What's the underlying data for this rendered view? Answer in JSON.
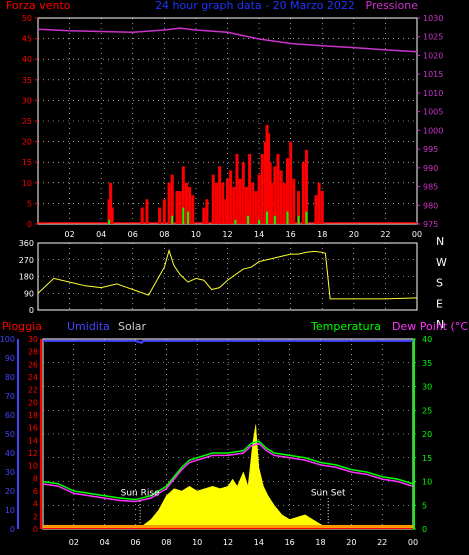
{
  "header": {
    "left_label": "Forza vento",
    "center_label": "24 hour graph data - 20 Marzo 2022",
    "right_label": "Pressione"
  },
  "colors": {
    "background": "#000000",
    "axis": "#ffffff",
    "grid": "#ffffff",
    "wind": "#ff0000",
    "gust": "#ff0000",
    "wind_avg": "#00ff00",
    "pressure": "#cc33cc",
    "direction": "#ffff33",
    "humidity": "#4444ff",
    "solar": "#ffff00",
    "temperature": "#00ff00",
    "dewpoint": "#ff33ff",
    "rain": "#ff0000",
    "header_title": "#2233ff",
    "solar_label": "#cccccc"
  },
  "chart_data": [
    {
      "type": "bar",
      "panel": "wind-pressure",
      "left_axis_label": "Forza vento",
      "right_axis_label": "Pressione",
      "x_tick_labels": [
        "02",
        "04",
        "06",
        "08",
        "10",
        "12",
        "14",
        "16",
        "18",
        "20",
        "22",
        "00"
      ],
      "left_ticks": [
        0,
        5,
        10,
        15,
        20,
        25,
        30,
        35,
        40,
        45,
        50
      ],
      "right_ticks": [
        975,
        980,
        985,
        990,
        995,
        1000,
        1005,
        1010,
        1015,
        1020,
        1025,
        1030
      ],
      "left_range": [
        0,
        50
      ],
      "right_range": [
        975,
        1030
      ],
      "x_range": [
        0,
        24
      ],
      "grid": true,
      "pressure": {
        "x": [
          0,
          2,
          4,
          6,
          8,
          9,
          10,
          12,
          13,
          14,
          15,
          16,
          18,
          20,
          22,
          24
        ],
        "y": [
          1027,
          1026.6,
          1026.4,
          1026.2,
          1026.8,
          1027.3,
          1026.8,
          1026.2,
          1025.3,
          1024.4,
          1023.8,
          1023.2,
          1022.6,
          1022.1,
          1021.5,
          1021
        ]
      },
      "gust": {
        "x": [
          4.5,
          4.6,
          4.7,
          6.6,
          6.9,
          7.7,
          8.0,
          8.3,
          8.5,
          8.8,
          9.0,
          9.2,
          9.4,
          9.6,
          9.8,
          10.5,
          10.7,
          11.1,
          11.3,
          11.5,
          11.7,
          11.9,
          12.0,
          12.2,
          12.4,
          12.6,
          12.8,
          13.0,
          13.2,
          13.4,
          13.6,
          13.8,
          14.0,
          14.2,
          14.4,
          14.5,
          14.6,
          14.7,
          14.8,
          15.0,
          15.2,
          15.4,
          15.6,
          15.8,
          16.0,
          16.2,
          16.5,
          16.8,
          17.0,
          17.6,
          17.8,
          18.0
        ],
        "y": [
          6,
          10,
          4,
          4,
          6,
          4,
          6,
          10,
          12,
          8,
          8,
          14,
          10,
          9,
          7,
          4,
          6,
          12,
          10,
          14,
          10,
          6,
          11,
          13,
          9,
          17,
          11,
          15,
          9,
          17,
          10,
          8,
          12,
          17,
          20,
          24,
          22,
          15,
          10,
          14,
          17,
          13,
          10,
          16,
          20,
          11,
          8,
          15,
          18,
          7,
          10,
          8
        ]
      },
      "wind_avg": {
        "x": [
          4.5,
          8.5,
          9.2,
          9.5,
          12.5,
          13.3,
          14.0,
          14.5,
          15.0,
          15.8,
          16.5,
          17.0
        ],
        "y": [
          1,
          2,
          4,
          3,
          1,
          2,
          1,
          3,
          2,
          3,
          2,
          3
        ]
      }
    },
    {
      "type": "scatter",
      "panel": "wind-direction",
      "right_axis_labels": [
        "N",
        "W",
        "S",
        "E",
        "N"
      ],
      "left_ticks": [
        0,
        90,
        180,
        270,
        360
      ],
      "left_range": [
        0,
        360
      ],
      "x_range": [
        0,
        24
      ],
      "grid": true,
      "direction": {
        "x": [
          0,
          1,
          2,
          3,
          4,
          5,
          6,
          7,
          8,
          8.3,
          8.6,
          9,
          9.5,
          10,
          10.5,
          11,
          11.5,
          12,
          12.5,
          13,
          13.5,
          14,
          14.5,
          15,
          15.5,
          16,
          16.5,
          17,
          17.5,
          18,
          18.2,
          18.5,
          20,
          22,
          24
        ],
        "y": [
          90,
          170,
          150,
          130,
          120,
          140,
          110,
          80,
          230,
          320,
          240,
          190,
          150,
          170,
          160,
          110,
          120,
          160,
          190,
          220,
          230,
          260,
          270,
          280,
          290,
          300,
          300,
          310,
          315,
          310,
          305,
          60,
          60,
          60,
          65
        ]
      }
    },
    {
      "type": "area",
      "panel": "temperature-solar-rain",
      "labels": {
        "rain": "Pioggia",
        "humidity": "Umidita",
        "solar": "Solar",
        "temperature": "Temperatura",
        "dewpoint": "Dew Point (°C)",
        "sun_rise": "Sun Rise",
        "sun_set": "Sun Set"
      },
      "x_tick_labels": [
        "02",
        "04",
        "06",
        "08",
        "10",
        "12",
        "14",
        "16",
        "18",
        "20",
        "22",
        "00"
      ],
      "humidity_ticks": [
        0,
        10,
        20,
        30,
        40,
        50,
        60,
        70,
        80,
        90,
        100
      ],
      "rain_ticks": [
        0,
        2,
        4,
        6,
        8,
        10,
        12,
        14,
        16,
        18,
        20,
        22,
        24,
        26,
        28,
        30
      ],
      "temperature_ticks": [
        0,
        5,
        10,
        15,
        20,
        25,
        30,
        35,
        40
      ],
      "temperature_range": [
        0,
        40
      ],
      "x_range": [
        0,
        24
      ],
      "grid": true,
      "sun_rise_x": 6.3,
      "sun_set_x": 18.5,
      "humidity": {
        "x": [
          0,
          6.0,
          6.4,
          6.5,
          8,
          24
        ],
        "y": [
          99,
          99,
          98,
          99,
          99,
          99
        ]
      },
      "temperature": {
        "x": [
          0,
          1,
          2,
          3,
          4,
          5,
          6,
          7,
          8,
          9,
          9.5,
          10,
          11,
          12,
          13,
          13.5,
          14,
          14.5,
          15,
          16,
          17,
          18,
          19,
          20,
          21,
          22,
          23,
          24
        ],
        "y": [
          10,
          9.5,
          8,
          7.5,
          7,
          6.5,
          6.2,
          7,
          9,
          13,
          14.5,
          15,
          16,
          16,
          16.5,
          18,
          18.5,
          17,
          16,
          15.5,
          15,
          14,
          13.5,
          12.5,
          12,
          11,
          10.5,
          9.5
        ]
      },
      "dewpoint": {
        "x": [
          0,
          1,
          2,
          3,
          4,
          5,
          6,
          7,
          8,
          9,
          9.5,
          10,
          11,
          12,
          13,
          13.5,
          14,
          14.5,
          15,
          16,
          17,
          18,
          19,
          20,
          21,
          22,
          23,
          24
        ],
        "y": [
          9.5,
          9,
          7.5,
          7,
          6.5,
          6,
          5.8,
          6.5,
          8.5,
          12.5,
          14,
          14.5,
          15.5,
          15.5,
          16,
          17.5,
          18,
          16.5,
          15.5,
          15,
          14.5,
          13.5,
          13,
          12,
          11.5,
          10.5,
          10,
          9
        ]
      },
      "solar": {
        "x": [
          6.3,
          7.0,
          7.5,
          8,
          8.5,
          9,
          9.5,
          10,
          10.5,
          11,
          11.5,
          12,
          12.3,
          12.6,
          13,
          13.3,
          13.6,
          13.8,
          14,
          14.3,
          14.6,
          15,
          15.5,
          16,
          16.5,
          17,
          17.5,
          18,
          18.5
        ],
        "y": [
          0.3,
          2,
          4,
          7,
          8.5,
          8,
          9,
          8,
          8.5,
          9,
          8.5,
          9,
          10.5,
          9,
          12,
          9,
          18,
          22,
          13,
          9,
          7,
          5,
          3,
          2,
          2.5,
          3,
          2,
          1,
          0.2
        ]
      },
      "rain": {
        "x": [
          0,
          24
        ],
        "y": [
          0,
          0
        ]
      }
    }
  ]
}
